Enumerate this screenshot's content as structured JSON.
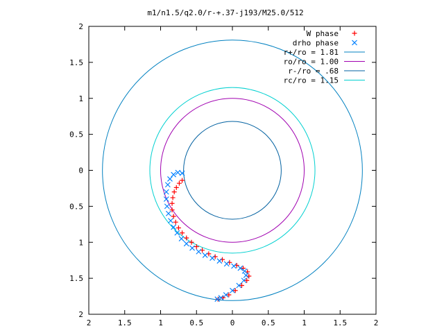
{
  "chart_data": {
    "type": "scatter",
    "title": "m1/n1.5/q2.0/r-+.37-j193/M25.0/512",
    "xlabel": "",
    "ylabel": "",
    "xlim": [
      -2,
      2
    ],
    "ylim": [
      -2,
      2
    ],
    "grid": false,
    "legend_position": "top-right",
    "x_ticks": [
      "2",
      "1.5",
      "1",
      "0.5",
      "0",
      "0.5",
      "1",
      "1.5",
      "2"
    ],
    "y_ticks": [
      "2",
      "1.5",
      "1",
      "0.5",
      "0",
      "0.5",
      "1",
      "1.5",
      "2"
    ],
    "series": [
      {
        "name": "W phase",
        "kind": "points",
        "marker": "plus",
        "color": "#ff0000",
        "points": [
          [
            -0.7,
            -0.14
          ],
          [
            -0.74,
            -0.18
          ],
          [
            -0.78,
            -0.24
          ],
          [
            -0.81,
            -0.3
          ],
          [
            -0.83,
            -0.38
          ],
          [
            -0.84,
            -0.46
          ],
          [
            -0.84,
            -0.55
          ],
          [
            -0.82,
            -0.64
          ],
          [
            -0.79,
            -0.72
          ],
          [
            -0.75,
            -0.8
          ],
          [
            -0.7,
            -0.87
          ],
          [
            -0.64,
            -0.94
          ],
          [
            -0.57,
            -1.0
          ],
          [
            -0.5,
            -1.06
          ],
          [
            -0.42,
            -1.11
          ],
          [
            -0.33,
            -1.16
          ],
          [
            -0.24,
            -1.2
          ],
          [
            -0.14,
            -1.24
          ],
          [
            -0.04,
            -1.28
          ],
          [
            0.06,
            -1.32
          ],
          [
            0.15,
            -1.36
          ],
          [
            0.21,
            -1.41
          ],
          [
            0.23,
            -1.47
          ],
          [
            0.2,
            -1.53
          ],
          [
            0.13,
            -1.6
          ],
          [
            0.04,
            -1.67
          ],
          [
            -0.05,
            -1.73
          ],
          [
            -0.13,
            -1.77
          ],
          [
            -0.2,
            -1.79
          ]
        ]
      },
      {
        "name": "drho phase",
        "kind": "points",
        "marker": "cross",
        "color": "#0080ff",
        "points": [
          [
            -0.7,
            -0.04
          ],
          [
            -0.76,
            -0.03
          ],
          [
            -0.82,
            -0.06
          ],
          [
            -0.87,
            -0.12
          ],
          [
            -0.9,
            -0.2
          ],
          [
            -0.92,
            -0.3
          ],
          [
            -0.92,
            -0.4
          ],
          [
            -0.91,
            -0.5
          ],
          [
            -0.89,
            -0.6
          ],
          [
            -0.86,
            -0.7
          ],
          [
            -0.82,
            -0.79
          ],
          [
            -0.77,
            -0.87
          ],
          [
            -0.71,
            -0.95
          ],
          [
            -0.64,
            -1.02
          ],
          [
            -0.56,
            -1.08
          ],
          [
            -0.47,
            -1.13
          ],
          [
            -0.38,
            -1.18
          ],
          [
            -0.28,
            -1.22
          ],
          [
            -0.18,
            -1.26
          ],
          [
            -0.08,
            -1.3
          ],
          [
            0.02,
            -1.33
          ],
          [
            0.11,
            -1.36
          ],
          [
            0.17,
            -1.4
          ],
          [
            0.19,
            -1.46
          ],
          [
            0.16,
            -1.53
          ],
          [
            0.09,
            -1.6
          ],
          [
            0.0,
            -1.67
          ],
          [
            -0.09,
            -1.73
          ],
          [
            -0.16,
            -1.77
          ],
          [
            -0.21,
            -1.79
          ]
        ]
      },
      {
        "name": "r+/ro = 1.81",
        "kind": "circle",
        "radius": 1.81,
        "color": "#0080c0"
      },
      {
        "name": "ro/ro = 1.00",
        "kind": "circle",
        "radius": 1.0,
        "color": "#a000b0"
      },
      {
        "name": "r-/ro = .68",
        "kind": "circle",
        "radius": 0.68,
        "color": "#0060a0"
      },
      {
        "name": "rc/ro = 1.15",
        "kind": "circle",
        "radius": 1.15,
        "color": "#00d0d0"
      }
    ]
  }
}
